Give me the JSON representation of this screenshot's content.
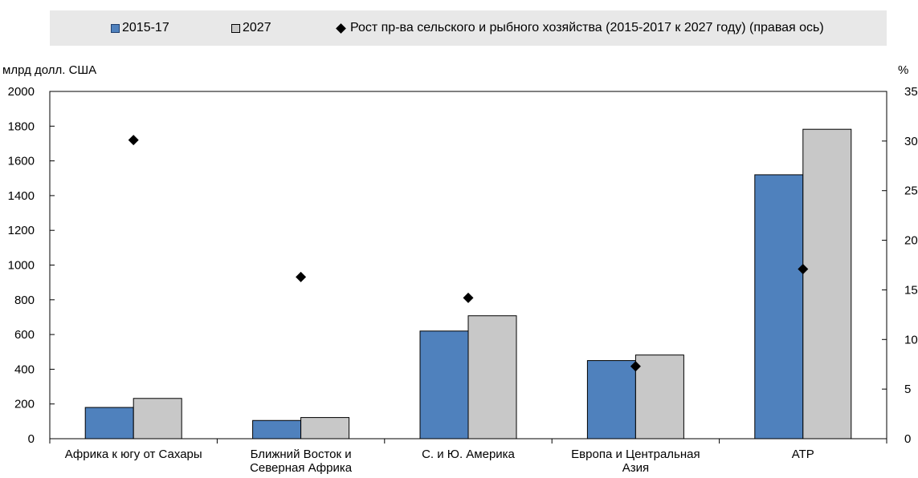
{
  "legend": {
    "items": [
      {
        "label": "2015-17",
        "type": "bar",
        "color": "#4f81bd"
      },
      {
        "label": "2027",
        "type": "bar",
        "color": "#c8c8c8"
      },
      {
        "label": "Рост пр-ва сельского и рыбного хозяйства (2015-2017 к 2027 году) (правая ось)",
        "type": "marker",
        "color": "#000000"
      }
    ]
  },
  "chart_data": {
    "type": "bar",
    "categories": [
      [
        "Африка к югу от Сахары"
      ],
      [
        "Ближний Восток и",
        "Северная Африка"
      ],
      [
        "С. и Ю. Америка"
      ],
      [
        "Европа и Центральная",
        "Азия"
      ],
      [
        "АТР"
      ]
    ],
    "series": [
      {
        "name": "2015-17",
        "axis": "left",
        "type": "bar",
        "color": "#4f81bd",
        "values": [
          180,
          105,
          620,
          450,
          1520
        ]
      },
      {
        "name": "2027",
        "axis": "left",
        "type": "bar",
        "color": "#c8c8c8",
        "values": [
          232,
          122,
          708,
          482,
          1782
        ]
      },
      {
        "name": "Рост пр-ва сельского и рыбного хозяйства (2015-2017 к 2027 году) (правая ось)",
        "axis": "right",
        "type": "scatter",
        "marker": "diamond",
        "color": "#000000",
        "values": [
          30.1,
          16.3,
          14.2,
          7.3,
          17.1
        ]
      }
    ],
    "left_axis": {
      "label": "млрд долл. США",
      "min": 0,
      "max": 2000,
      "ticks": [
        0,
        200,
        400,
        600,
        800,
        1000,
        1200,
        1400,
        1600,
        1800,
        2000
      ]
    },
    "right_axis": {
      "label": "%",
      "min": 0,
      "max": 35,
      "ticks": [
        0,
        5,
        10,
        15,
        20,
        25,
        30,
        35
      ]
    },
    "grid": false,
    "legend_position": "top"
  }
}
